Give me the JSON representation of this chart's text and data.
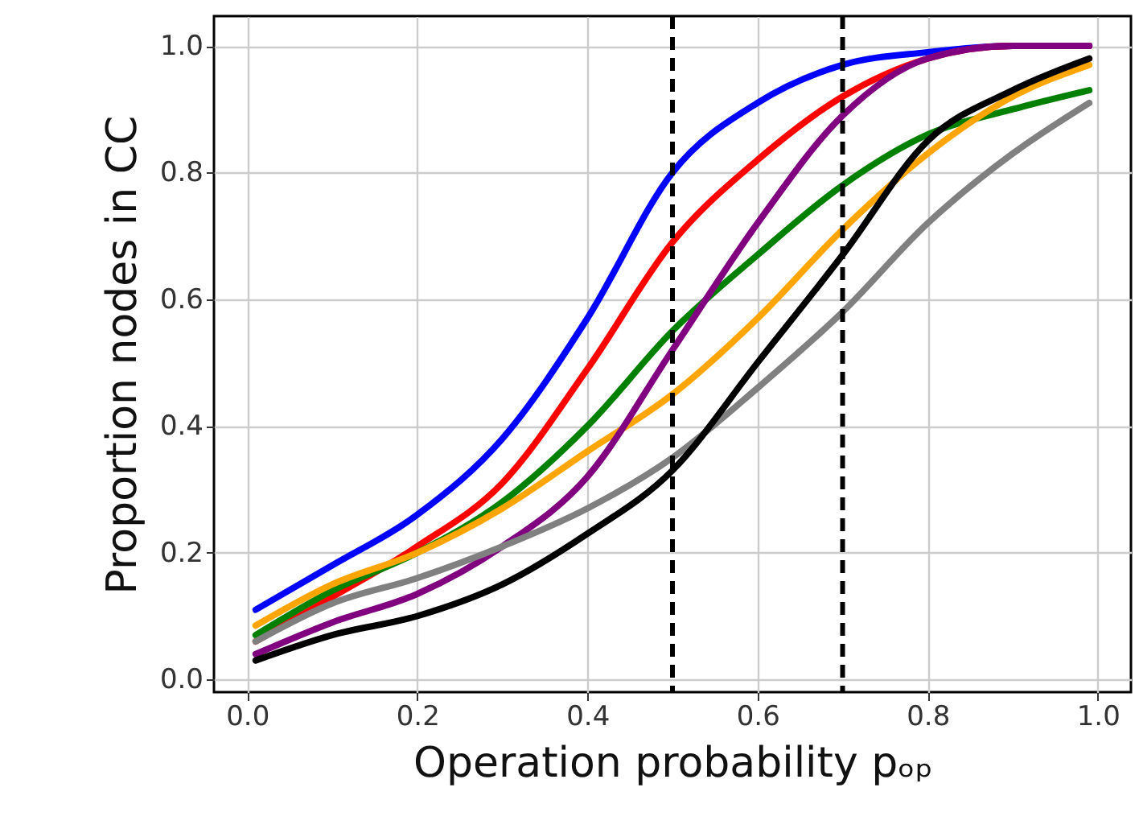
{
  "chart_data": {
    "type": "line",
    "xlabel": "Operation probability pₒₚ",
    "ylabel": "Proportion nodes in CC",
    "x": [
      0.01,
      0.1,
      0.2,
      0.3,
      0.4,
      0.5,
      0.6,
      0.7,
      0.8,
      0.9,
      0.99
    ],
    "series": [
      {
        "color": "#0000ff",
        "values": [
          0.11,
          0.18,
          0.26,
          0.38,
          0.57,
          0.8,
          0.91,
          0.97,
          0.99,
          1.0,
          1.0
        ]
      },
      {
        "color": "#ff0000",
        "values": [
          0.06,
          0.13,
          0.21,
          0.31,
          0.49,
          0.69,
          0.82,
          0.92,
          0.98,
          1.0,
          1.0
        ]
      },
      {
        "color": "#008000",
        "values": [
          0.07,
          0.14,
          0.2,
          0.28,
          0.4,
          0.55,
          0.67,
          0.78,
          0.86,
          0.9,
          0.93
        ]
      },
      {
        "color": "#ffa500",
        "values": [
          0.085,
          0.15,
          0.2,
          0.27,
          0.36,
          0.45,
          0.57,
          0.71,
          0.83,
          0.92,
          0.97
        ]
      },
      {
        "color": "#800080",
        "values": [
          0.04,
          0.09,
          0.135,
          0.21,
          0.32,
          0.52,
          0.72,
          0.89,
          0.98,
          1.0,
          1.0
        ]
      },
      {
        "color": "#808080",
        "values": [
          0.06,
          0.12,
          0.16,
          0.21,
          0.27,
          0.35,
          0.46,
          0.58,
          0.72,
          0.83,
          0.91
        ]
      },
      {
        "color": "#000000",
        "values": [
          0.03,
          0.07,
          0.1,
          0.15,
          0.23,
          0.33,
          0.5,
          0.67,
          0.85,
          0.93,
          0.98
        ]
      }
    ],
    "xlim": [
      -0.039,
      1.039
    ],
    "ylim": [
      -0.02,
      1.047
    ],
    "xticks": [
      {
        "value": 0,
        "label": "0.0"
      },
      0.2,
      0.4,
      0.6,
      0.8,
      {
        "value": 1,
        "label": "1.0"
      }
    ],
    "yticks": [
      {
        "value": 0,
        "label": "0.0"
      },
      0.2,
      0.4,
      0.6,
      0.8,
      {
        "value": 1,
        "label": "1.0"
      }
    ],
    "ref_lines": [
      {
        "axis": "x",
        "value": 0.5,
        "color": "#000000",
        "line_style": "dashed"
      },
      {
        "axis": "x",
        "value": 0.7,
        "color": "#000000",
        "line_style": "dashed"
      }
    ],
    "grid": true,
    "marker": "none",
    "line_style": "solid"
  }
}
